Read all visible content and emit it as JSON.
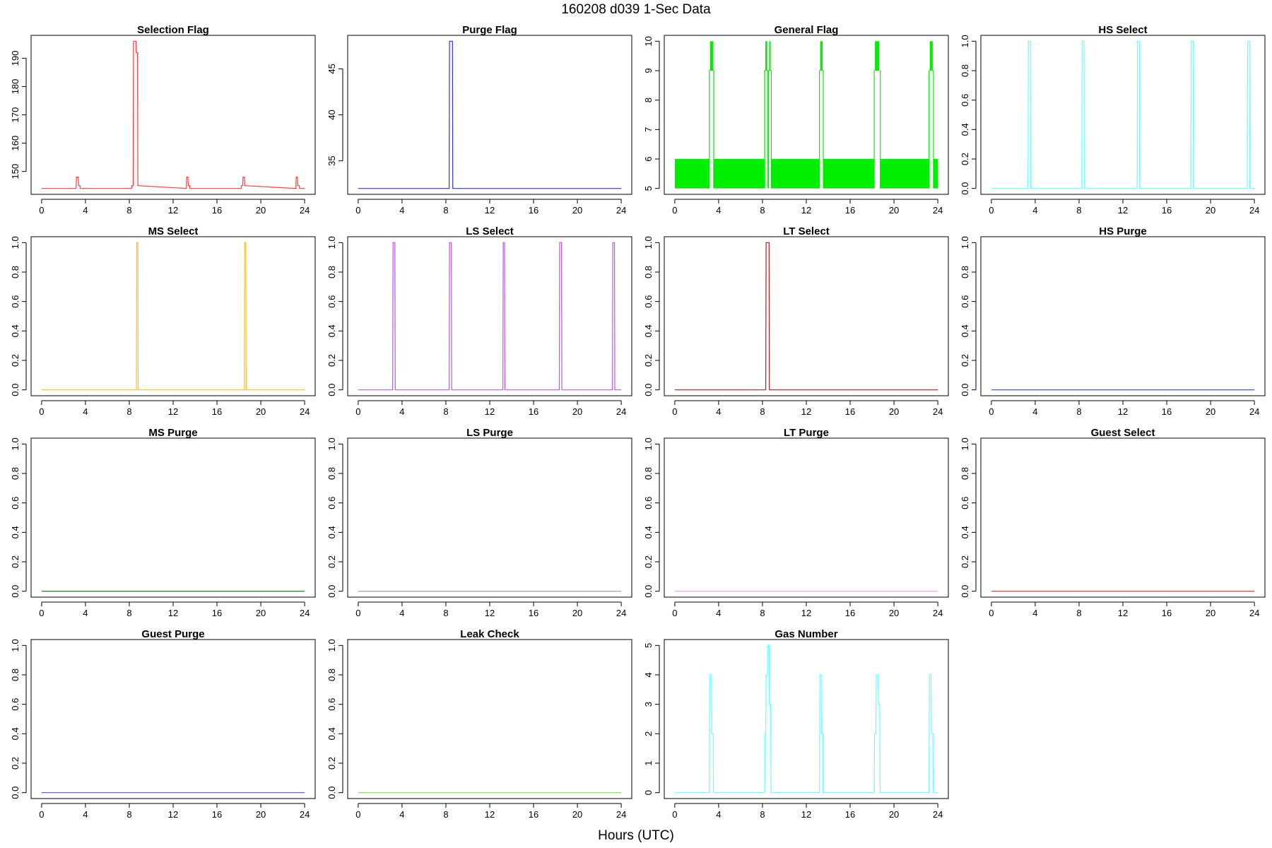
{
  "figure": {
    "title": "160208   d039   1-Sec Data",
    "xlabel": "Hours (UTC)"
  },
  "chart_data": [
    {
      "type": "line",
      "title": "Selection Flag",
      "color": "#ff3b3b",
      "xlim": [
        0,
        24
      ],
      "ylim": [
        144,
        196
      ],
      "xticks": [
        0,
        4,
        8,
        12,
        16,
        20,
        24
      ],
      "yticks": [
        150,
        160,
        170,
        180,
        190
      ],
      "x": [
        0,
        3.15,
        3.18,
        3.35,
        3.38,
        3.5,
        3.53,
        8.2,
        8.23,
        8.35,
        8.38,
        8.6,
        8.63,
        8.75,
        8.78,
        13.2,
        13.23,
        13.35,
        13.38,
        13.5,
        13.53,
        18.2,
        18.23,
        18.35,
        18.38,
        18.5,
        18.53,
        23.2,
        23.23,
        23.35,
        23.38,
        23.5,
        23.53,
        24
      ],
      "y": [
        144,
        144,
        148,
        148,
        145,
        145,
        144,
        144,
        145,
        145,
        196,
        196,
        192,
        192,
        145,
        144,
        148,
        148,
        145,
        145,
        144,
        144,
        145,
        145,
        148,
        148,
        145,
        144,
        148,
        148,
        145,
        145,
        144,
        144
      ]
    },
    {
      "type": "line",
      "title": "Purge Flag",
      "color": "#3333cc",
      "xlim": [
        0,
        24
      ],
      "ylim": [
        32,
        48
      ],
      "xticks": [
        0,
        4,
        8,
        12,
        16,
        20,
        24
      ],
      "yticks": [
        35,
        40,
        45
      ],
      "x": [
        0,
        8.3,
        8.33,
        8.6,
        8.63,
        24
      ],
      "y": [
        32,
        32,
        48,
        48,
        32,
        32
      ]
    },
    {
      "type": "area",
      "title": "General Flag",
      "color": "#00ee00",
      "xlim": [
        0,
        24
      ],
      "ylim": [
        5,
        10
      ],
      "xticks": [
        0,
        4,
        8,
        12,
        16,
        20,
        24
      ],
      "yticks": [
        5,
        6,
        7,
        8,
        9,
        10
      ],
      "bands": [
        [
          0,
          3.15,
          5,
          6
        ],
        [
          3.55,
          8.2,
          5,
          6
        ],
        [
          8.8,
          13.2,
          5,
          6
        ],
        [
          13.55,
          18.2,
          5,
          6
        ],
        [
          18.75,
          23.2,
          5,
          6
        ],
        [
          23.6,
          24,
          5,
          6
        ]
      ],
      "spikes": [
        [
          3.15,
          3.55
        ],
        [
          8.2,
          8.5
        ],
        [
          8.55,
          8.8
        ],
        [
          13.2,
          13.55
        ],
        [
          18.2,
          18.75
        ],
        [
          23.2,
          23.6
        ]
      ]
    },
    {
      "type": "line",
      "title": "HS Select",
      "color": "#66ffff",
      "xlim": [
        0,
        24
      ],
      "ylim": [
        0,
        1
      ],
      "xticks": [
        0,
        4,
        8,
        12,
        16,
        20,
        24
      ],
      "yticks": [
        0.0,
        0.2,
        0.4,
        0.6,
        0.8,
        1.0
      ],
      "x": [
        0,
        3.35,
        3.38,
        3.55,
        3.58,
        8.25,
        8.28,
        8.45,
        8.48,
        13.3,
        13.33,
        13.5,
        13.53,
        18.2,
        18.23,
        18.4,
        18.43,
        23.35,
        23.38,
        23.55,
        23.58,
        24
      ],
      "y": [
        0,
        0,
        1,
        1,
        0,
        0,
        1,
        1,
        0,
        0,
        1,
        1,
        0,
        0,
        1,
        1,
        0,
        0,
        1,
        1,
        0,
        0
      ]
    },
    {
      "type": "line",
      "title": "MS Select",
      "color": "#ffbb22",
      "xlim": [
        0,
        24
      ],
      "ylim": [
        0,
        1
      ],
      "xticks": [
        0,
        4,
        8,
        12,
        16,
        20,
        24
      ],
      "yticks": [
        0.0,
        0.2,
        0.4,
        0.6,
        0.8,
        1.0
      ],
      "x": [
        0,
        8.65,
        8.68,
        8.78,
        8.81,
        18.5,
        18.53,
        18.63,
        18.66,
        24
      ],
      "y": [
        0,
        0,
        1,
        1,
        0,
        0,
        1,
        1,
        0,
        0
      ]
    },
    {
      "type": "line",
      "title": "LS Select",
      "color": "#bb55ee",
      "xlim": [
        0,
        24
      ],
      "ylim": [
        0,
        1
      ],
      "xticks": [
        0,
        4,
        8,
        12,
        16,
        20,
        24
      ],
      "yticks": [
        0.0,
        0.2,
        0.4,
        0.6,
        0.8,
        1.0
      ],
      "x": [
        0,
        3.15,
        3.18,
        3.35,
        3.38,
        8.3,
        8.33,
        8.5,
        8.53,
        13.2,
        13.23,
        13.35,
        13.38,
        18.35,
        18.38,
        18.55,
        18.58,
        23.2,
        23.23,
        23.38,
        23.41,
        24
      ],
      "y": [
        0,
        0,
        1,
        1,
        0,
        0,
        1,
        1,
        0,
        0,
        1,
        1,
        0,
        0,
        1,
        1,
        0,
        0,
        1,
        1,
        0,
        0
      ]
    },
    {
      "type": "line",
      "title": "LT Select",
      "color": "#aa2222",
      "xlim": [
        0,
        24
      ],
      "ylim": [
        0,
        1
      ],
      "xticks": [
        0,
        4,
        8,
        12,
        16,
        20,
        24
      ],
      "yticks": [
        0.0,
        0.2,
        0.4,
        0.6,
        0.8,
        1.0
      ],
      "x": [
        0,
        8.3,
        8.33,
        8.6,
        8.63,
        24
      ],
      "y": [
        0,
        0,
        1,
        1,
        0,
        0
      ]
    },
    {
      "type": "line",
      "title": "HS Purge",
      "color": "#3344cc",
      "xlim": [
        0,
        24
      ],
      "ylim": [
        0,
        1
      ],
      "xticks": [
        0,
        4,
        8,
        12,
        16,
        20,
        24
      ],
      "yticks": [
        0.0,
        0.2,
        0.4,
        0.6,
        0.8,
        1.0
      ],
      "x": [
        0,
        24
      ],
      "y": [
        0,
        0
      ]
    },
    {
      "type": "line",
      "title": "MS Purge",
      "color": "#117711",
      "xlim": [
        0,
        24
      ],
      "ylim": [
        0,
        1
      ],
      "xticks": [
        0,
        4,
        8,
        12,
        16,
        20,
        24
      ],
      "yticks": [
        0.0,
        0.2,
        0.4,
        0.6,
        0.8,
        1.0
      ],
      "x": [
        0,
        24
      ],
      "y": [
        0,
        0
      ]
    },
    {
      "type": "line",
      "title": "LS Purge",
      "color": "#999999",
      "xlim": [
        0,
        24
      ],
      "ylim": [
        0,
        1
      ],
      "xticks": [
        0,
        4,
        8,
        12,
        16,
        20,
        24
      ],
      "yticks": [
        0.0,
        0.2,
        0.4,
        0.6,
        0.8,
        1.0
      ],
      "x": [
        0,
        24
      ],
      "y": [
        0,
        0
      ]
    },
    {
      "type": "line",
      "title": "LT Purge",
      "color": "#ee99ee",
      "xlim": [
        0,
        24
      ],
      "ylim": [
        0,
        1
      ],
      "xticks": [
        0,
        4,
        8,
        12,
        16,
        20,
        24
      ],
      "yticks": [
        0.0,
        0.2,
        0.4,
        0.6,
        0.8,
        1.0
      ],
      "x": [
        0,
        24
      ],
      "y": [
        0,
        0
      ]
    },
    {
      "type": "line",
      "title": "Guest Select",
      "color": "#cc3333",
      "xlim": [
        0,
        24
      ],
      "ylim": [
        0,
        1
      ],
      "xticks": [
        0,
        4,
        8,
        12,
        16,
        20,
        24
      ],
      "yticks": [
        0.0,
        0.2,
        0.4,
        0.6,
        0.8,
        1.0
      ],
      "x": [
        0,
        24
      ],
      "y": [
        0,
        0
      ]
    },
    {
      "type": "line",
      "title": "Guest Purge",
      "color": "#5555cc",
      "xlim": [
        0,
        24
      ],
      "ylim": [
        0,
        1
      ],
      "xticks": [
        0,
        4,
        8,
        12,
        16,
        20,
        24
      ],
      "yticks": [
        0.0,
        0.2,
        0.4,
        0.6,
        0.8,
        1.0
      ],
      "x": [
        0,
        24
      ],
      "y": [
        0,
        0
      ]
    },
    {
      "type": "line",
      "title": "Leak Check",
      "color": "#77dd55",
      "xlim": [
        0,
        24
      ],
      "ylim": [
        0,
        1
      ],
      "xticks": [
        0,
        4,
        8,
        12,
        16,
        20,
        24
      ],
      "yticks": [
        0.0,
        0.2,
        0.4,
        0.6,
        0.8,
        1.0
      ],
      "x": [
        0,
        24
      ],
      "y": [
        0,
        0
      ]
    },
    {
      "type": "line",
      "title": "Gas Number",
      "color": "#66ffff",
      "xlim": [
        0,
        24
      ],
      "ylim": [
        0,
        5
      ],
      "xticks": [
        0,
        4,
        8,
        12,
        16,
        20,
        24
      ],
      "yticks": [
        0,
        1,
        2,
        3,
        4,
        5
      ],
      "x": [
        0,
        3.15,
        3.18,
        3.35,
        3.38,
        3.5,
        3.53,
        8.2,
        8.23,
        8.3,
        8.33,
        8.45,
        8.48,
        8.6,
        8.63,
        8.75,
        8.78,
        13.2,
        13.23,
        13.35,
        13.38,
        13.5,
        13.53,
        18.2,
        18.23,
        18.35,
        18.38,
        18.55,
        18.58,
        18.7,
        18.73,
        23.2,
        23.23,
        23.38,
        23.41,
        23.55,
        23.58,
        24
      ],
      "y": [
        0,
        0,
        4,
        4,
        2,
        2,
        0,
        0,
        2,
        2,
        4,
        4,
        5,
        5,
        3,
        3,
        0,
        0,
        4,
        4,
        2,
        2,
        0,
        0,
        2,
        2,
        4,
        4,
        3,
        3,
        0,
        0,
        4,
        4,
        2,
        2,
        0,
        0
      ]
    }
  ]
}
